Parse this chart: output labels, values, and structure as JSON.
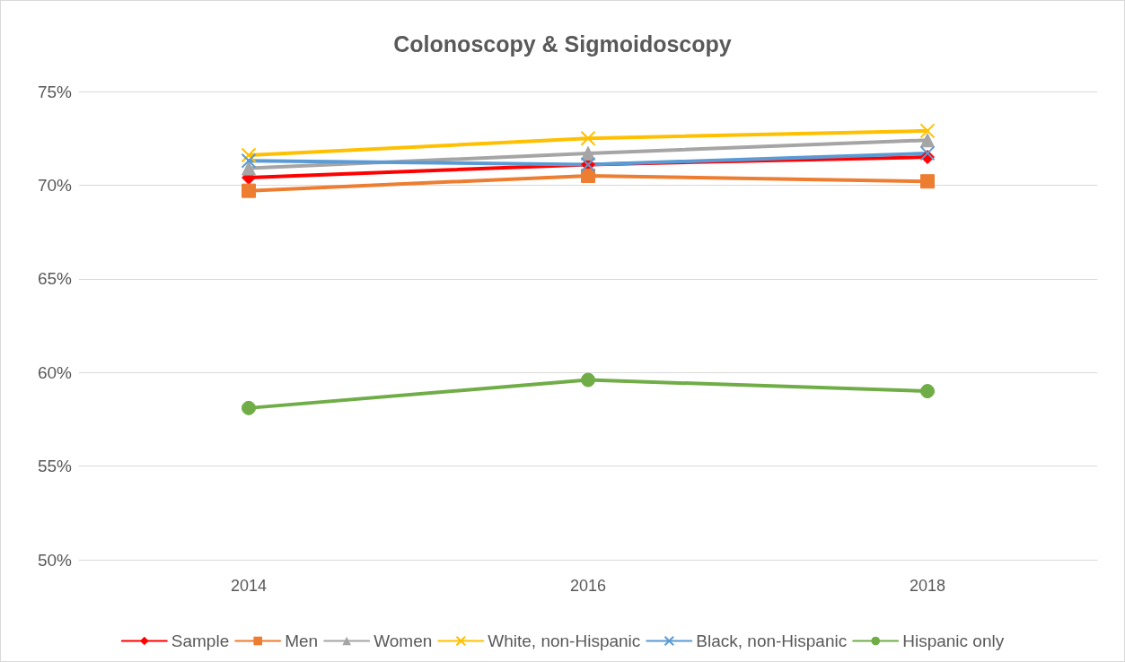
{
  "chart_data": {
    "type": "line",
    "title": "Colonoscopy & Sigmoidoscopy",
    "categories": [
      "2014",
      "2016",
      "2018"
    ],
    "series": [
      {
        "name": "Sample",
        "color": "#ff0000",
        "marker": "diamond",
        "values": [
          70.4,
          71.1,
          71.5
        ]
      },
      {
        "name": "Men",
        "color": "#ed7d31",
        "marker": "square",
        "values": [
          69.7,
          70.5,
          70.2
        ]
      },
      {
        "name": "Women",
        "color": "#a5a5a5",
        "marker": "triangle",
        "values": [
          70.9,
          71.7,
          72.4
        ]
      },
      {
        "name": "White, non-Hispanic",
        "color": "#ffc000",
        "marker": "cross",
        "values": [
          71.6,
          72.5,
          72.9
        ]
      },
      {
        "name": "Black, non-Hispanic",
        "color": "#5b9bd5",
        "marker": "cross",
        "values": [
          71.3,
          71.1,
          71.7
        ]
      },
      {
        "name": "Hispanic only",
        "color": "#70ad47",
        "marker": "circle",
        "values": [
          58.1,
          59.6,
          59.0
        ]
      }
    ],
    "ylim": [
      50,
      75
    ],
    "yticks": [
      {
        "value": 50,
        "label": "50%"
      },
      {
        "value": 55,
        "label": "55%"
      },
      {
        "value": 60,
        "label": "60%"
      },
      {
        "value": 65,
        "label": "65%"
      },
      {
        "value": 70,
        "label": "70%"
      },
      {
        "value": 75,
        "label": "75%"
      }
    ],
    "grid": "y",
    "legend": "bottom"
  }
}
